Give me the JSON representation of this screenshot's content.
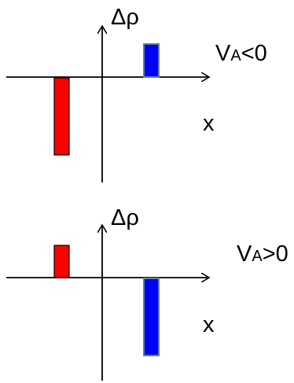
{
  "panels": [
    {
      "axis_label": "Δρ",
      "x_label": "x",
      "condition_main": "V",
      "condition_sub": "A",
      "condition_rest": "<0",
      "left_bar_color": "#ff0000",
      "right_bar_color": "#0000ff",
      "left_bar_direction": "below",
      "right_bar_direction": "above"
    },
    {
      "axis_label": "Δρ",
      "x_label": "x",
      "condition_main": "V",
      "condition_sub": "A",
      "condition_rest": ">0",
      "left_bar_color": "#ff0000",
      "right_bar_color": "#0000ff",
      "left_bar_direction": "above",
      "right_bar_direction": "below"
    }
  ]
}
